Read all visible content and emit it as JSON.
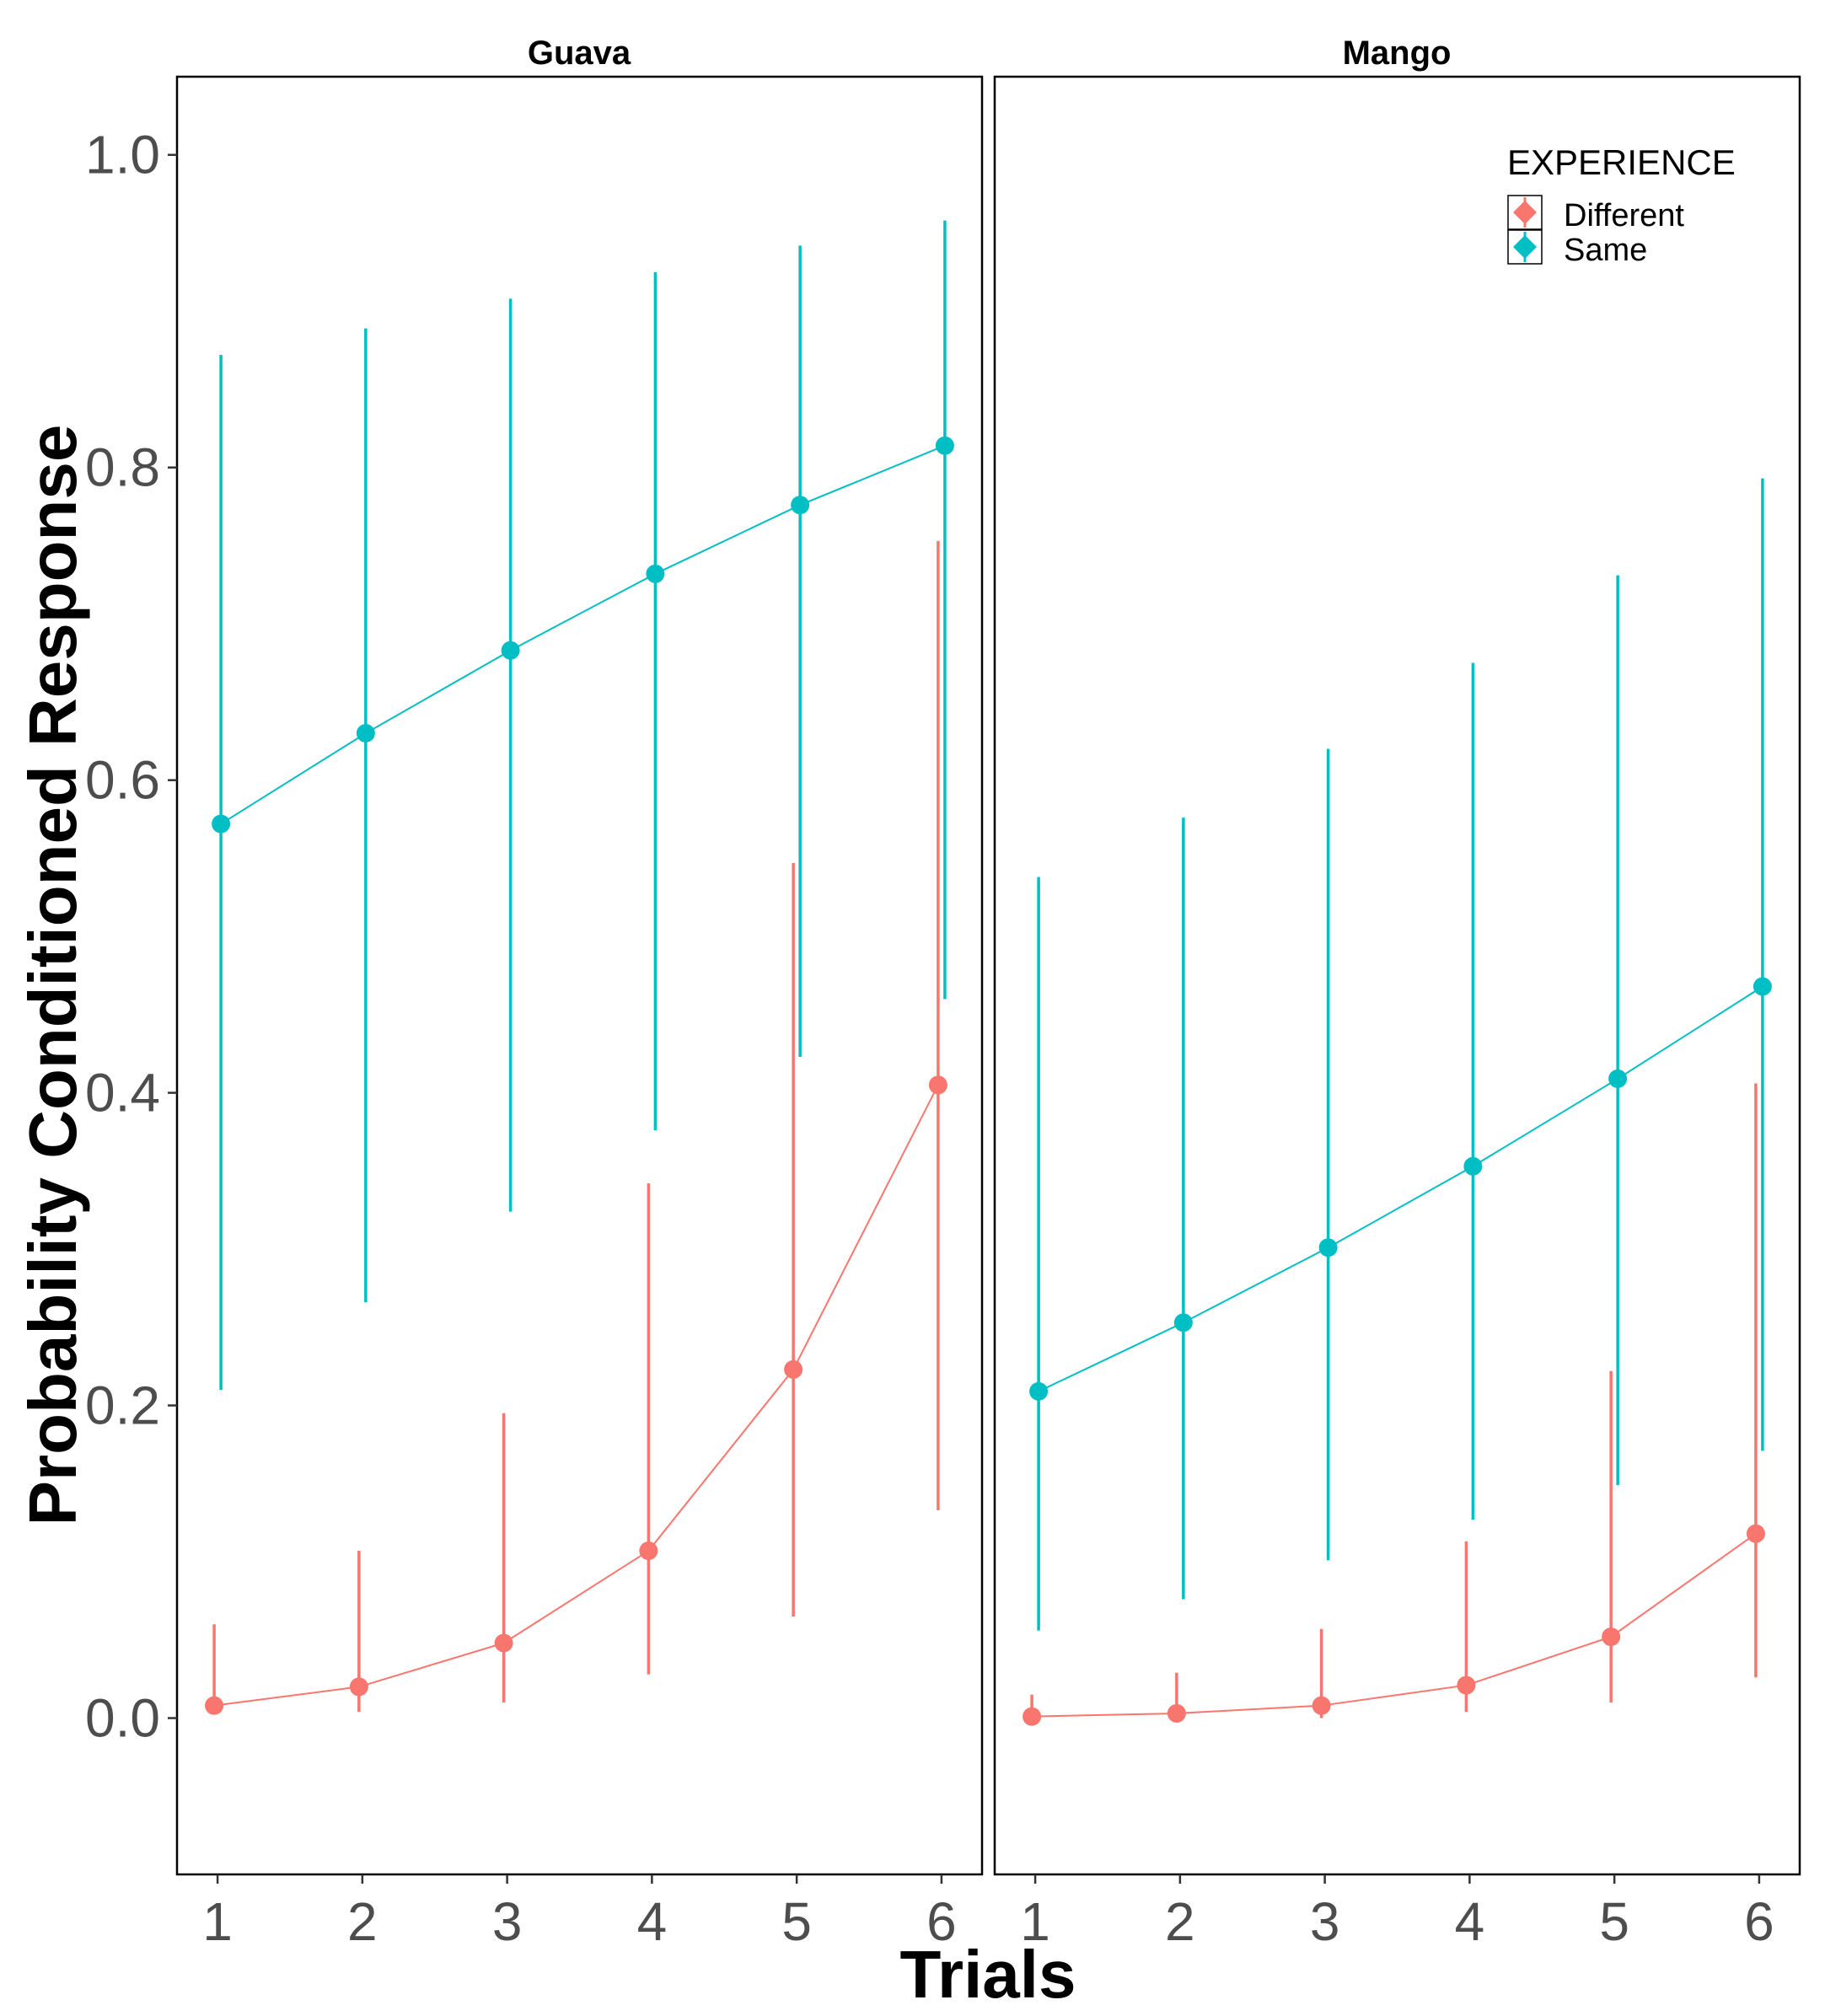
{
  "chart_data": {
    "type": "line",
    "title": "",
    "xlabel": "Trials",
    "ylabel": "Probability Conditioned Response",
    "ylim": [
      -0.1,
      1.05
    ],
    "xlim": [
      0.72,
      6.28
    ],
    "y_ticks": [
      "0.0",
      "0.2",
      "0.4",
      "0.6",
      "0.8",
      "1.0"
    ],
    "x_ticks": [
      "1",
      "2",
      "3",
      "4",
      "5",
      "6"
    ],
    "legend": {
      "title": "EXPERIENCE",
      "position": "top-right",
      "entries": [
        {
          "name": "Different",
          "color": "#F8766D"
        },
        {
          "name": "Same",
          "color": "#00BFC4"
        }
      ]
    },
    "facets": [
      {
        "title": "Guava",
        "series": [
          {
            "name": "Different",
            "color": "#F8766D",
            "x": [
              1,
              2,
              3,
              4,
              5,
              6
            ],
            "values": [
              0.008,
              0.02,
              0.048,
              0.107,
              0.223,
              0.405
            ],
            "lower": [
              0.005,
              0.004,
              0.01,
              0.028,
              0.065,
              0.133
            ],
            "upper": [
              0.06,
              0.107,
              0.195,
              0.342,
              0.547,
              0.753
            ]
          },
          {
            "name": "Same",
            "color": "#00BFC4",
            "x": [
              1,
              2,
              3,
              4,
              5,
              6
            ],
            "values": [
              0.572,
              0.63,
              0.683,
              0.732,
              0.776,
              0.814
            ],
            "lower": [
              0.21,
              0.266,
              0.324,
              0.376,
              0.423,
              0.46
            ],
            "upper": [
              0.872,
              0.889,
              0.908,
              0.925,
              0.942,
              0.958
            ]
          }
        ]
      },
      {
        "title": "Mango",
        "series": [
          {
            "name": "Different",
            "color": "#F8766D",
            "x": [
              1,
              2,
              3,
              4,
              5,
              6
            ],
            "values": [
              0.001,
              0.003,
              0.008,
              0.021,
              0.052,
              0.118
            ],
            "lower": [
              0.0,
              0.0,
              0.0,
              0.004,
              0.01,
              0.026
            ],
            "upper": [
              0.015,
              0.029,
              0.057,
              0.113,
              0.222,
              0.406
            ]
          },
          {
            "name": "Same",
            "color": "#00BFC4",
            "x": [
              1,
              2,
              3,
              4,
              5,
              6
            ],
            "values": [
              0.209,
              0.253,
              0.301,
              0.353,
              0.409,
              0.468
            ],
            "lower": [
              0.056,
              0.076,
              0.101,
              0.127,
              0.149,
              0.171
            ],
            "upper": [
              0.538,
              0.576,
              0.62,
              0.675,
              0.731,
              0.793
            ]
          }
        ]
      }
    ]
  }
}
